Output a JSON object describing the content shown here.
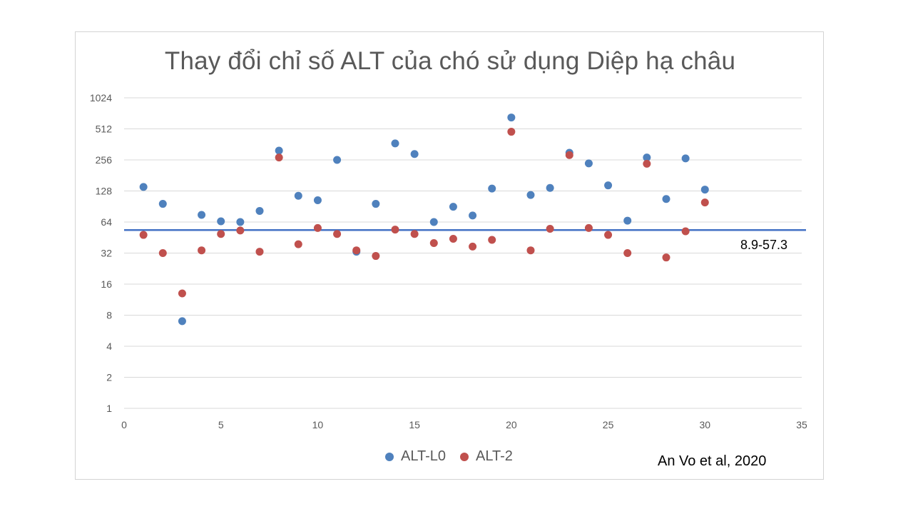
{
  "chart_data": {
    "type": "scatter",
    "title": "Thay đổi chỉ số ALT của chó sử dụng Diệp hạ châu",
    "xlabel": "",
    "ylabel": "",
    "xlim": [
      0,
      35
    ],
    "x_ticks": [
      0,
      5,
      10,
      15,
      20,
      25,
      30,
      35
    ],
    "ylim": [
      1,
      1024
    ],
    "y_scale": "log2",
    "y_ticks": [
      1,
      2,
      4,
      8,
      16,
      32,
      64,
      128,
      256,
      512,
      1024
    ],
    "grid": true,
    "legend_position": "bottom",
    "series": [
      {
        "name": "ALT-L0",
        "color": "#4f81bd",
        "x": [
          1,
          2,
          3,
          4,
          5,
          6,
          7,
          8,
          9,
          10,
          11,
          12,
          13,
          14,
          15,
          16,
          17,
          18,
          19,
          20,
          21,
          22,
          23,
          24,
          25,
          26,
          27,
          28,
          29,
          30
        ],
        "y": [
          140,
          96,
          7,
          75,
          65,
          64,
          82,
          315,
          115,
          104,
          256,
          33,
          96,
          370,
          292,
          64,
          90,
          74,
          135,
          660,
          117,
          137,
          300,
          237,
          145,
          66,
          270,
          107,
          265,
          132
        ]
      },
      {
        "name": "ALT-2",
        "color": "#c0504d",
        "x": [
          1,
          2,
          3,
          4,
          5,
          6,
          7,
          8,
          9,
          10,
          11,
          12,
          13,
          14,
          15,
          16,
          17,
          18,
          19,
          20,
          21,
          22,
          23,
          24,
          25,
          26,
          27,
          28,
          29,
          30
        ],
        "y": [
          48,
          32,
          13,
          34,
          49,
          53,
          33,
          270,
          39,
          56,
          49,
          34,
          30,
          54,
          49,
          40,
          44,
          37,
          43,
          480,
          34,
          55,
          285,
          56,
          48,
          32,
          235,
          29,
          52,
          99
        ]
      }
    ],
    "reference_line": {
      "value": 53.5,
      "label": "8.9-57.3",
      "color": "#4472c4"
    },
    "annotation": "An Vo et al, 2020"
  }
}
